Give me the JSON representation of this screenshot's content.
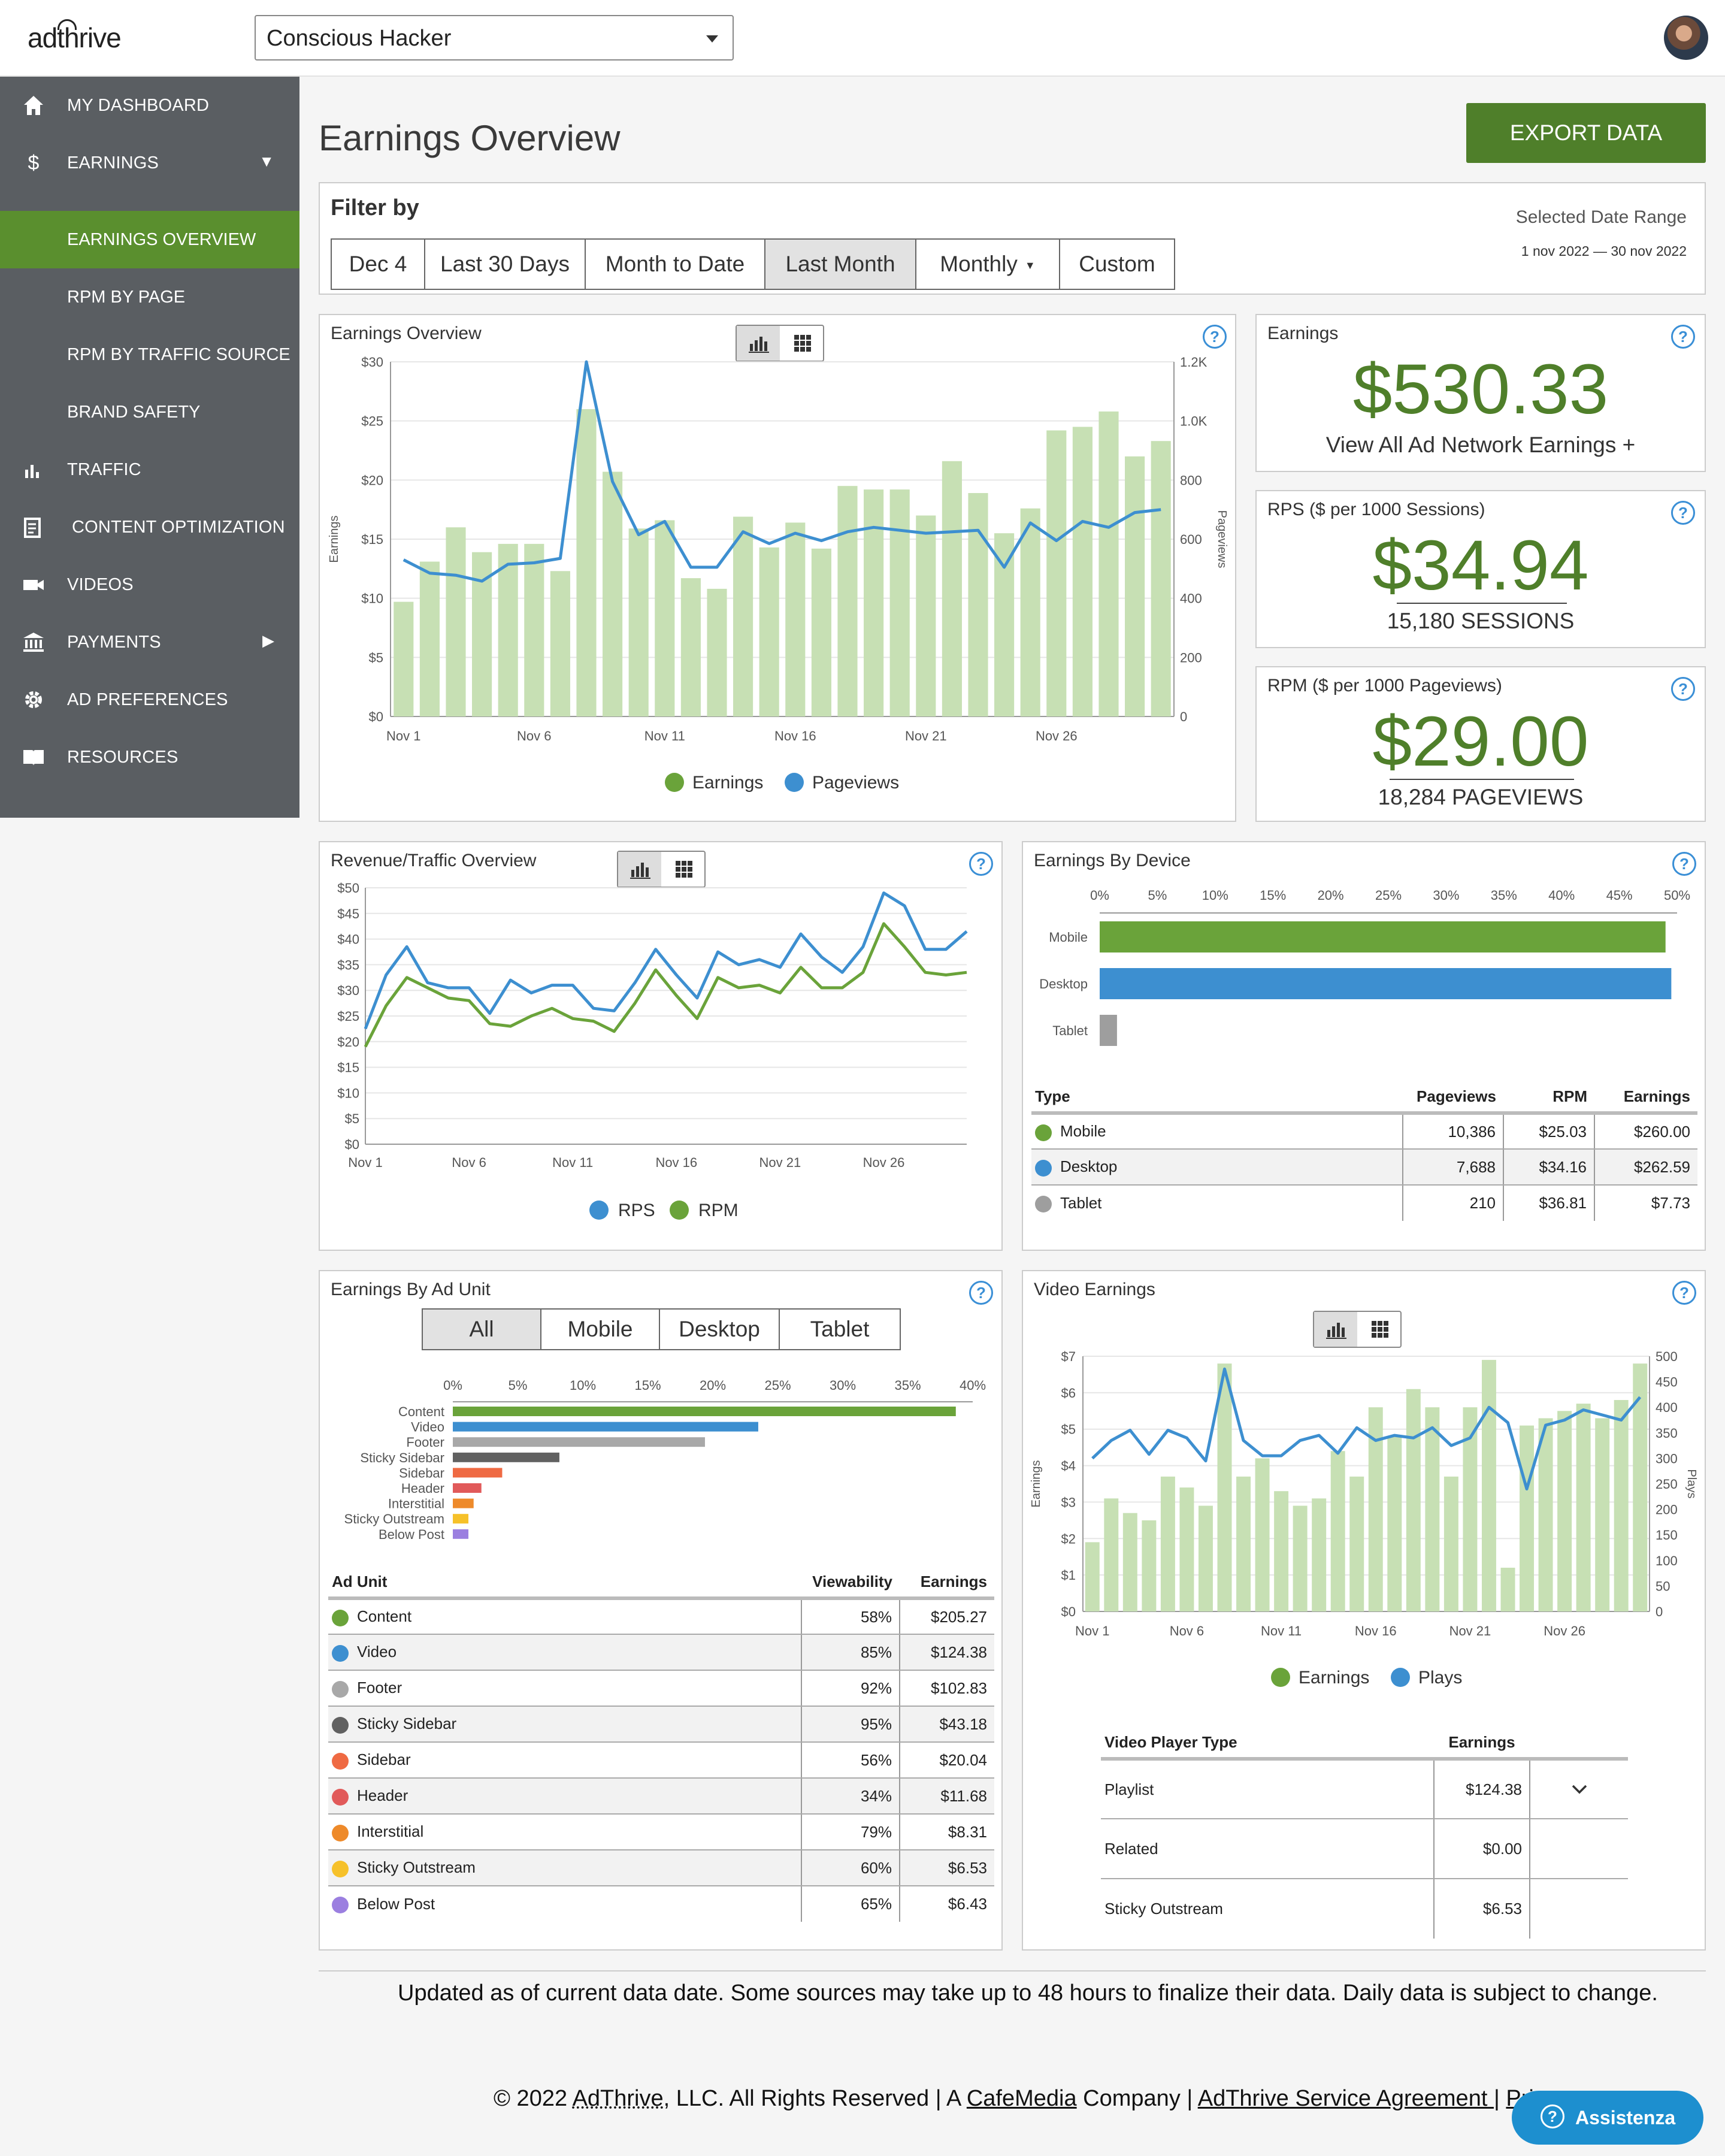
{
  "topbar": {
    "logo": "adthrive",
    "site": "Conscious Hacker"
  },
  "sidebar": {
    "items": [
      {
        "label": "MY DASHBOARD",
        "icon": "home-icon"
      },
      {
        "label": "EARNINGS",
        "icon": "dollar-icon"
      },
      {
        "label": "EARNINGS OVERVIEW"
      },
      {
        "label": "RPM BY PAGE"
      },
      {
        "label": "RPM BY TRAFFIC SOURCE"
      },
      {
        "label": "BRAND SAFETY"
      },
      {
        "label": "TRAFFIC",
        "icon": "bar-chart-icon"
      },
      {
        "label": "CONTENT OPTIMIZATION",
        "icon": "document-icon"
      },
      {
        "label": "VIDEOS",
        "icon": "video-camera-icon"
      },
      {
        "label": "PAYMENTS",
        "icon": "bank-icon"
      },
      {
        "label": "AD PREFERENCES",
        "icon": "gear-icon"
      },
      {
        "label": "RESOURCES",
        "icon": "book-icon"
      }
    ]
  },
  "header": {
    "title": "Earnings Overview",
    "export_label": "EXPORT DATA"
  },
  "filter": {
    "title": "Filter by",
    "buttons": [
      "Dec 4",
      "Last 30 Days",
      "Month to Date",
      "Last Month",
      "Monthly",
      "Custom"
    ],
    "active": "Last Month",
    "range_label": "Selected Date Range",
    "range_value": "1 nov 2022 — 30 nov 2022"
  },
  "kpis": {
    "earnings": {
      "title": "Earnings",
      "value": "$530.33",
      "sub": "View All Ad Network Earnings +"
    },
    "rps": {
      "title": "RPS ($ per 1000 Sessions)",
      "value": "$34.94",
      "sub": "15,180 SESSIONS"
    },
    "rpm": {
      "title": "RPM ($ per 1000 Pageviews)",
      "value": "$29.00",
      "sub": "18,284 PAGEVIEWS"
    }
  },
  "colors": {
    "green": "#6aa33a",
    "blue": "#3d8fd0",
    "bar_green": "#c7e0b4",
    "accent": "#4f7f2a"
  },
  "chart_data": [
    {
      "id": "earnings-overview",
      "type": "bar",
      "title": "Earnings Overview",
      "ylabel": "Earnings",
      "y2label": "Pageviews",
      "ylim": [
        0,
        30
      ],
      "y2lim": [
        0,
        1200
      ],
      "yticks": [
        "$0",
        "$5",
        "$10",
        "$15",
        "$20",
        "$25",
        "$30"
      ],
      "y2ticks": [
        "0",
        "200",
        "400",
        "600",
        "800",
        "1.0K",
        "1.2K"
      ],
      "xticks": [
        "Nov 1",
        "Nov 6",
        "Nov 11",
        "Nov 16",
        "Nov 21",
        "Nov 26"
      ],
      "legend": [
        "Earnings",
        "Pageviews"
      ],
      "earnings": [
        9.7,
        13.1,
        16.0,
        13.9,
        14.6,
        14.6,
        12.3,
        26.0,
        20.7,
        15.9,
        16.6,
        11.7,
        10.8,
        16.9,
        14.3,
        16.4,
        14.2,
        19.5,
        19.2,
        19.2,
        17.0,
        21.6,
        18.9,
        15.5,
        17.6,
        24.2,
        24.5,
        25.8,
        22.0,
        23.3
      ],
      "pageviews": [
        530,
        485,
        478,
        458,
        515,
        520,
        535,
        1200,
        795,
        615,
        660,
        505,
        505,
        625,
        585,
        620,
        595,
        625,
        640,
        630,
        620,
        625,
        630,
        505,
        655,
        595,
        660,
        640,
        690,
        700
      ]
    },
    {
      "id": "revenue-traffic",
      "type": "line",
      "title": "Revenue/Traffic Overview",
      "ylim": [
        0,
        50
      ],
      "yticks": [
        "$0",
        "$5",
        "$10",
        "$15",
        "$20",
        "$25",
        "$30",
        "$35",
        "$40",
        "$45",
        "$50"
      ],
      "xticks": [
        "Nov 1",
        "Nov 6",
        "Nov 11",
        "Nov 16",
        "Nov 21",
        "Nov 26"
      ],
      "legend": [
        "RPS",
        "RPM"
      ],
      "rps": [
        22.5,
        33,
        38.5,
        31.5,
        30.5,
        30.5,
        25.5,
        32,
        29.5,
        31,
        31,
        26.5,
        26,
        31.5,
        38,
        33,
        28.5,
        37.5,
        35,
        36,
        34.5,
        41,
        36.5,
        33.5,
        38.5,
        49,
        46.5,
        38,
        38,
        41.5
      ],
      "rpm": [
        19,
        27,
        32.5,
        30.5,
        28.5,
        28,
        23.5,
        23,
        25,
        26.5,
        24.5,
        24,
        22,
        27.5,
        34,
        29,
        24.5,
        32.5,
        30.5,
        31,
        29.5,
        34.5,
        30.5,
        30.5,
        33.5,
        43,
        38.5,
        33.5,
        33,
        33.5
      ]
    },
    {
      "id": "earnings-by-device",
      "type": "bar",
      "title": "Earnings By Device",
      "orientation": "horizontal",
      "xlim": [
        0,
        50
      ],
      "xticks": [
        "0%",
        "5%",
        "10%",
        "15%",
        "20%",
        "25%",
        "30%",
        "35%",
        "40%",
        "45%",
        "50%"
      ],
      "categories": [
        "Mobile",
        "Desktop",
        "Tablet"
      ],
      "values": [
        49.0,
        49.5,
        1.5
      ]
    },
    {
      "id": "earnings-by-ad-unit",
      "type": "bar",
      "title": "Earnings By Ad Unit",
      "orientation": "horizontal",
      "xlim": [
        0,
        40
      ],
      "xticks": [
        "0%",
        "5%",
        "10%",
        "15%",
        "20%",
        "25%",
        "30%",
        "35%",
        "40%"
      ],
      "categories": [
        "Content",
        "Video",
        "Footer",
        "Sticky Sidebar",
        "Sidebar",
        "Header",
        "Interstitial",
        "Sticky Outstream",
        "Below Post"
      ],
      "values": [
        38.7,
        23.5,
        19.4,
        8.2,
        3.8,
        2.2,
        1.6,
        1.2,
        1.2
      ]
    },
    {
      "id": "video-earnings",
      "type": "bar",
      "title": "Video Earnings",
      "ylabel": "Earnings",
      "y2label": "Plays",
      "ylim": [
        0,
        7
      ],
      "y2lim": [
        0,
        500
      ],
      "yticks": [
        "$0",
        "$1",
        "$2",
        "$3",
        "$4",
        "$5",
        "$6",
        "$7"
      ],
      "y2ticks": [
        "0",
        "50",
        "100",
        "150",
        "200",
        "250",
        "300",
        "350",
        "400",
        "450",
        "500"
      ],
      "xticks": [
        "Nov 1",
        "Nov 6",
        "Nov 11",
        "Nov 16",
        "Nov 21",
        "Nov 26"
      ],
      "legend": [
        "Earnings",
        "Plays"
      ],
      "earnings": [
        1.9,
        3.1,
        2.7,
        2.5,
        3.7,
        3.4,
        2.9,
        6.8,
        3.7,
        4.2,
        3.3,
        2.9,
        3.1,
        4.4,
        3.7,
        5.6,
        4.8,
        6.1,
        5.6,
        3.7,
        5.6,
        6.9,
        1.2,
        5.1,
        5.3,
        5.5,
        5.7,
        5.3,
        5.8,
        6.8
      ],
      "plays": [
        300,
        335,
        355,
        308,
        355,
        340,
        295,
        475,
        335,
        305,
        305,
        335,
        345,
        310,
        360,
        335,
        345,
        340,
        360,
        325,
        340,
        400,
        370,
        240,
        365,
        375,
        395,
        385,
        375,
        420
      ]
    }
  ],
  "charts_meta": {
    "overview": {
      "title": "Earnings Overview",
      "ylabel": "Earnings",
      "y2label": "Pageviews",
      "leg1": "Earnings",
      "leg2": "Pageviews"
    },
    "revenue": {
      "title": "Revenue/Traffic Overview",
      "leg1": "RPS",
      "leg2": "RPM"
    },
    "device": {
      "title": "Earnings By Device"
    },
    "adunit": {
      "title": "Earnings By Ad Unit",
      "tabs": [
        "All",
        "Mobile",
        "Desktop",
        "Tablet"
      ],
      "active_tab": "All"
    },
    "video": {
      "title": "Video Earnings",
      "ylabel": "Earnings",
      "y2label": "Plays",
      "leg1": "Earnings",
      "leg2": "Plays"
    }
  },
  "device_table": {
    "headers": [
      "Type",
      "Pageviews",
      "RPM",
      "Earnings"
    ],
    "rows": [
      {
        "type": "Mobile",
        "pageviews": "10,386",
        "rpm": "$25.03",
        "earnings": "$260.00",
        "color": "#6aa33a"
      },
      {
        "type": "Desktop",
        "pageviews": "7,688",
        "rpm": "$34.16",
        "earnings": "$262.59",
        "color": "#3d8fd0"
      },
      {
        "type": "Tablet",
        "pageviews": "210",
        "rpm": "$36.81",
        "earnings": "$7.73",
        "color": "#9e9e9e"
      }
    ]
  },
  "adunit_table": {
    "headers": [
      "Ad Unit",
      "Viewability",
      "Earnings"
    ],
    "rows": [
      {
        "unit": "Content",
        "viewability": "58%",
        "earnings": "$205.27",
        "color": "#6aa33a"
      },
      {
        "unit": "Video",
        "viewability": "85%",
        "earnings": "$124.38",
        "color": "#3d8fd0"
      },
      {
        "unit": "Footer",
        "viewability": "92%",
        "earnings": "$102.83",
        "color": "#a8a8a8"
      },
      {
        "unit": "Sticky Sidebar",
        "viewability": "95%",
        "earnings": "$43.18",
        "color": "#616161"
      },
      {
        "unit": "Sidebar",
        "viewability": "56%",
        "earnings": "$20.04",
        "color": "#ef6a43"
      },
      {
        "unit": "Header",
        "viewability": "34%",
        "earnings": "$11.68",
        "color": "#e15a5a"
      },
      {
        "unit": "Interstitial",
        "viewability": "79%",
        "earnings": "$8.31",
        "color": "#ee8a2a"
      },
      {
        "unit": "Sticky Outstream",
        "viewability": "60%",
        "earnings": "$6.53",
        "color": "#f6c12a"
      },
      {
        "unit": "Below Post",
        "viewability": "65%",
        "earnings": "$6.43",
        "color": "#9b7fe0"
      }
    ]
  },
  "video_table": {
    "headers": [
      "Video Player Type",
      "Earnings"
    ],
    "rows": [
      {
        "type": "Playlist",
        "earnings": "$124.38"
      },
      {
        "type": "Related",
        "earnings": "$0.00"
      },
      {
        "type": "Sticky Outstream",
        "earnings": "$6.53"
      }
    ]
  },
  "footer": {
    "note": "Updated as of current data date. Some sources may take up to 48 hours to finalize their data. Daily data is subject to change.",
    "copyright_pre": "© 2022 ",
    "brand": "AdThrive",
    "copyright_mid": ", LLC. All Rights Reserved | A ",
    "cafemedia": "CafeMedia",
    "copyright_mid2": " Company | ",
    "agreement": "AdThrive Service Agreement ",
    "sep": "| ",
    "privacy": "Privac",
    "assist": "Assistenza"
  }
}
